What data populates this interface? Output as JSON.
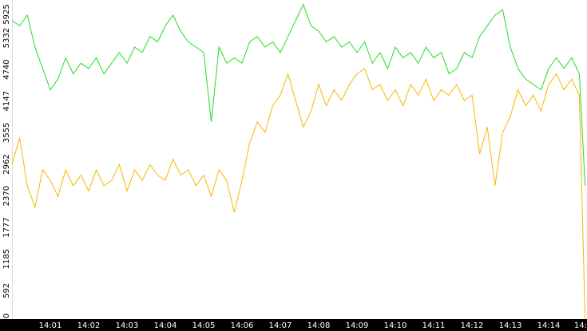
{
  "chart_data": {
    "type": "line",
    "x": [
      0,
      0.2,
      0.4,
      0.6,
      0.8,
      1.0,
      1.2,
      1.4,
      1.6,
      1.8,
      2.0,
      2.2,
      2.4,
      2.6,
      2.8,
      3.0,
      3.2,
      3.4,
      3.6,
      3.8,
      4.0,
      4.2,
      4.4,
      4.6,
      4.8,
      5.0,
      5.2,
      5.4,
      5.6,
      5.8,
      6.0,
      6.2,
      6.4,
      6.6,
      6.8,
      7.0,
      7.2,
      7.4,
      7.6,
      7.8,
      8.0,
      8.2,
      8.4,
      8.6,
      8.8,
      9.0,
      9.2,
      9.4,
      9.6,
      9.8,
      10.0,
      10.2,
      10.4,
      10.6,
      10.8,
      11.0,
      11.2,
      11.4,
      11.6,
      11.8,
      12.0,
      12.2,
      12.4,
      12.6,
      12.8,
      13.0,
      13.2,
      13.4,
      13.6,
      13.8,
      14.0,
      14.2,
      14.4,
      14.6,
      14.8,
      14.95
    ],
    "series": [
      {
        "name": "green",
        "color": "#22dd22",
        "values": [
          5600,
          5500,
          5700,
          5100,
          4700,
          4300,
          4500,
          4900,
          4600,
          4800,
          4700,
          4900,
          4600,
          4800,
          5000,
          4800,
          5100,
          5000,
          5300,
          5200,
          5500,
          5700,
          5400,
          5200,
          5100,
          5000,
          3700,
          5100,
          4800,
          4900,
          4800,
          5200,
          5300,
          5100,
          5200,
          5000,
          5300,
          5600,
          5900,
          5500,
          5400,
          5200,
          5300,
          5100,
          5200,
          5000,
          5200,
          4800,
          5000,
          4700,
          5100,
          4900,
          5000,
          4800,
          5100,
          4900,
          5000,
          4600,
          4700,
          5000,
          4900,
          5300,
          5500,
          5700,
          5800,
          5100,
          4700,
          4500,
          4400,
          4300,
          4700,
          4900,
          4700,
          4900,
          4600,
          2500
        ]
      },
      {
        "name": "orange",
        "color": "#f5b800",
        "values": [
          2900,
          3400,
          2500,
          2100,
          2800,
          2600,
          2300,
          2800,
          2500,
          2700,
          2400,
          2800,
          2500,
          2600,
          2900,
          2400,
          2800,
          2600,
          2900,
          2700,
          2600,
          3000,
          2700,
          2800,
          2500,
          2700,
          2300,
          2800,
          2600,
          2000,
          2600,
          3300,
          3700,
          3500,
          4000,
          4200,
          4600,
          4100,
          3600,
          3900,
          4400,
          4000,
          4300,
          4100,
          4400,
          4600,
          4700,
          4300,
          4400,
          4100,
          4300,
          4000,
          4400,
          4200,
          4500,
          4100,
          4300,
          4200,
          4400,
          4100,
          4200,
          3100,
          3600,
          2500,
          3500,
          3800,
          4300,
          4000,
          4200,
          3900,
          4400,
          4600,
          4300,
          4500,
          4200,
          0
        ]
      }
    ],
    "xlim": [
      0,
      15
    ],
    "xticks": [
      {
        "value": 1,
        "label": "14:01"
      },
      {
        "value": 2,
        "label": "14:02"
      },
      {
        "value": 3,
        "label": "14:03"
      },
      {
        "value": 4,
        "label": "14:04"
      },
      {
        "value": 5,
        "label": "14:05"
      },
      {
        "value": 6,
        "label": "14:06"
      },
      {
        "value": 7,
        "label": "14:07"
      },
      {
        "value": 8,
        "label": "14:08"
      },
      {
        "value": 9,
        "label": "14:09"
      },
      {
        "value": 10,
        "label": "14:10"
      },
      {
        "value": 11,
        "label": "14:11"
      },
      {
        "value": 12,
        "label": "14:12"
      },
      {
        "value": 13,
        "label": "14:13"
      },
      {
        "value": 14,
        "label": "14:14"
      },
      {
        "value": 15,
        "label": "14:"
      }
    ],
    "ylim": [
      0,
      5925
    ],
    "yticks": [
      0,
      {
        "value": 592.5,
        "label": "592"
      },
      1185,
      {
        "value": 1777.5,
        "label": "1777"
      },
      2370,
      {
        "value": 2962.5,
        "label": "2962"
      },
      3555,
      {
        "value": 4147.5,
        "label": "4147"
      },
      4740,
      {
        "value": 5332.5,
        "label": "5332"
      },
      5925
    ]
  }
}
